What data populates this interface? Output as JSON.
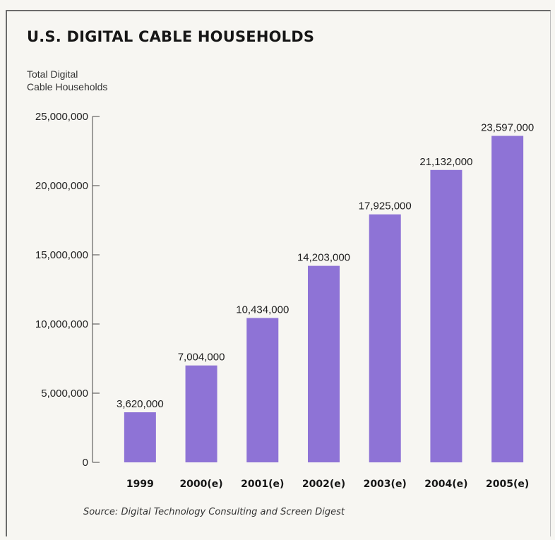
{
  "chart_data": {
    "type": "bar",
    "title": "U.S. DIGITAL CABLE HOUSEHOLDS",
    "ylabel_line1": "Total Digital",
    "ylabel_line2": "Cable Households",
    "xlabel": "",
    "categories": [
      "1999",
      "2000(e)",
      "2001(e)",
      "2002(e)",
      "2003(e)",
      "2004(e)",
      "2005(e)"
    ],
    "values": [
      3620000,
      7004000,
      10434000,
      14203000,
      17925000,
      21132000,
      23597000
    ],
    "value_labels": [
      "3,620,000",
      "7,004,000",
      "10,434,000",
      "14,203,000",
      "17,925,000",
      "21,132,000",
      "23,597,000"
    ],
    "ylim": [
      0,
      25000000
    ],
    "yticks": [
      0,
      5000000,
      10000000,
      15000000,
      20000000,
      25000000
    ],
    "ytick_labels": [
      "0",
      "5,000,000",
      "10,000,000",
      "15,000,000",
      "20,000,000",
      "25,000,000"
    ],
    "bar_color": "#8e73d6",
    "grid": false,
    "legend": "none",
    "source": "Source:  Digital Technology Consulting and Screen Digest"
  }
}
